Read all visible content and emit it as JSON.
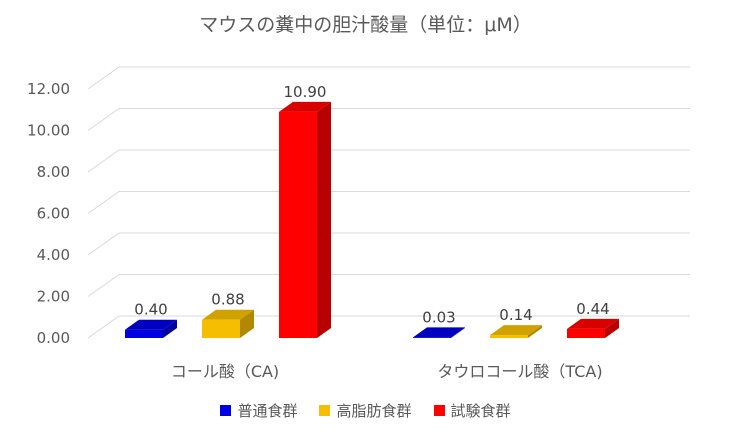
{
  "chart_data": {
    "type": "bar",
    "title": "マウスの糞中の胆汁酸量（単位：μM）",
    "categories": [
      "コール酸（CA)",
      "タウロコール酸（TCA)"
    ],
    "series": [
      {
        "name": "普通食群",
        "values": [
          0.4,
          0.03
        ],
        "color": "#0000E0"
      },
      {
        "name": "高脂肪食群",
        "values": [
          0.88,
          0.14
        ],
        "color": "#F5BE00"
      },
      {
        "name": "試験食群",
        "values": [
          10.9,
          0.44
        ],
        "color": "#FF0000"
      }
    ],
    "ylim": [
      0,
      12
    ],
    "yticks": [
      "0.00",
      "2.00",
      "4.00",
      "6.00",
      "8.00",
      "10.00",
      "12.00"
    ],
    "data_labels": [
      [
        "0.40",
        "0.03"
      ],
      [
        "0.88",
        "0.14"
      ],
      [
        "10.90",
        "0.44"
      ]
    ],
    "grid": true,
    "legend_position": "bottom",
    "style": "3d-bar"
  }
}
